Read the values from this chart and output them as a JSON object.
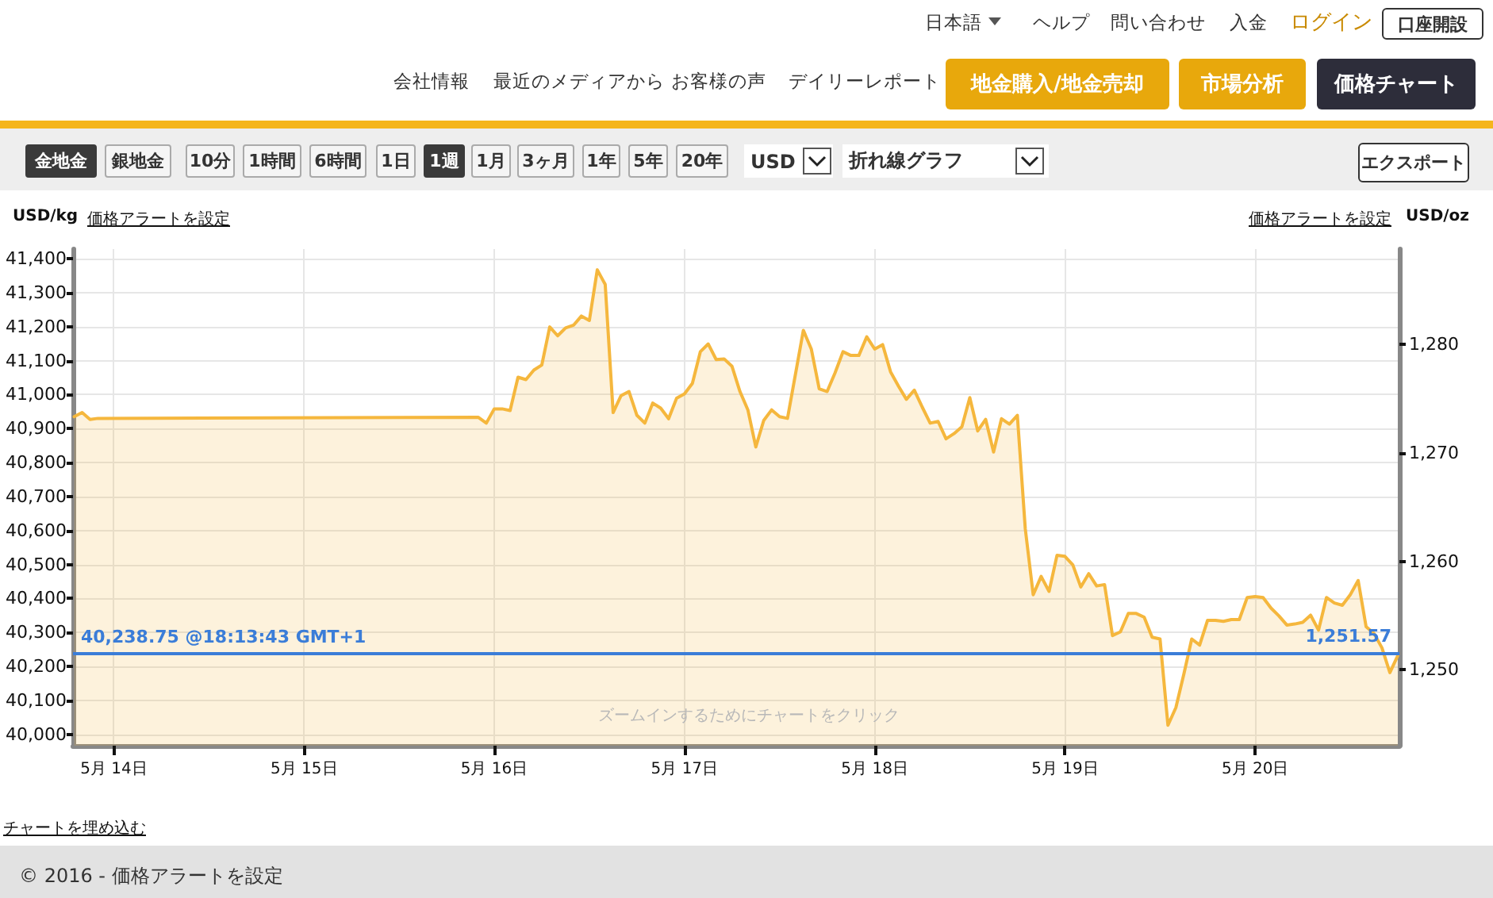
{
  "chart_data": {
    "type": "area",
    "ylabel": "USD/kg",
    "y2label": "USD/oz",
    "x": [
      "2016-05-13T19:00",
      "2016-05-13T20:00",
      "2016-05-13T21:00",
      "2016-05-13T22:00",
      "2016-05-15T22:00",
      "2016-05-15T23:00",
      "2016-05-16T00:00",
      "2016-05-16T01:00",
      "2016-05-16T02:00",
      "2016-05-16T03:00",
      "2016-05-16T04:00",
      "2016-05-16T05:00",
      "2016-05-16T06:00",
      "2016-05-16T07:00",
      "2016-05-16T08:00",
      "2016-05-16T09:00",
      "2016-05-16T10:00",
      "2016-05-16T11:00",
      "2016-05-16T12:00",
      "2016-05-16T13:00",
      "2016-05-16T14:00",
      "2016-05-16T15:00",
      "2016-05-16T16:00",
      "2016-05-16T17:00",
      "2016-05-16T18:00",
      "2016-05-16T19:00",
      "2016-05-16T20:00",
      "2016-05-16T21:00",
      "2016-05-16T22:00",
      "2016-05-16T23:00",
      "2016-05-17T00:00",
      "2016-05-17T01:00",
      "2016-05-17T02:00",
      "2016-05-17T03:00",
      "2016-05-17T04:00",
      "2016-05-17T05:00",
      "2016-05-17T06:00",
      "2016-05-17T07:00",
      "2016-05-17T08:00",
      "2016-05-17T09:00",
      "2016-05-17T10:00",
      "2016-05-17T11:00",
      "2016-05-17T12:00",
      "2016-05-17T13:00",
      "2016-05-17T15:00",
      "2016-05-17T16:00",
      "2016-05-17T17:00",
      "2016-05-17T18:00",
      "2016-05-17T19:00",
      "2016-05-17T20:00",
      "2016-05-17T21:00",
      "2016-05-17T22:00",
      "2016-05-17T23:00",
      "2016-05-18T00:00",
      "2016-05-18T01:00",
      "2016-05-18T02:00",
      "2016-05-18T03:00",
      "2016-05-18T04:00",
      "2016-05-18T05:00",
      "2016-05-18T06:00",
      "2016-05-18T07:00",
      "2016-05-18T08:00",
      "2016-05-18T09:00",
      "2016-05-18T10:00",
      "2016-05-18T11:00",
      "2016-05-18T12:00",
      "2016-05-18T13:00",
      "2016-05-18T14:00",
      "2016-05-18T15:00",
      "2016-05-18T16:00",
      "2016-05-18T17:00",
      "2016-05-18T18:00",
      "2016-05-18T19:00",
      "2016-05-18T20:00",
      "2016-05-18T21:00",
      "2016-05-18T22:00",
      "2016-05-18T23:00",
      "2016-05-19T00:00",
      "2016-05-19T01:00",
      "2016-05-19T02:00",
      "2016-05-19T03:00",
      "2016-05-19T04:00",
      "2016-05-19T05:00",
      "2016-05-19T06:00",
      "2016-05-19T07:00",
      "2016-05-19T08:00",
      "2016-05-19T09:00",
      "2016-05-19T10:00",
      "2016-05-19T11:00",
      "2016-05-19T12:00",
      "2016-05-19T13:00",
      "2016-05-19T14:00",
      "2016-05-19T15:00",
      "2016-05-19T16:00",
      "2016-05-19T17:00",
      "2016-05-19T18:00",
      "2016-05-19T19:00",
      "2016-05-19T20:00",
      "2016-05-19T21:00",
      "2016-05-19T22:00",
      "2016-05-19T23:00",
      "2016-05-20T00:00",
      "2016-05-20T01:00",
      "2016-05-20T02:00",
      "2016-05-20T03:00",
      "2016-05-20T04:00",
      "2016-05-20T05:00",
      "2016-05-20T06:00",
      "2016-05-20T07:00",
      "2016-05-20T08:00",
      "2016-05-20T09:00",
      "2016-05-20T10:00",
      "2016-05-20T11:00",
      "2016-05-20T12:00",
      "2016-05-20T13:00",
      "2016-05-20T14:00",
      "2016-05-20T15:00",
      "2016-05-20T16:00",
      "2016-05-20T17:00",
      "2016-05-20T18:00"
    ],
    "values": [
      40935,
      40947,
      40927,
      40930,
      40933,
      40916,
      40958,
      40958,
      40953,
      41051,
      41044,
      41072,
      41087,
      41199,
      41173,
      41196,
      41204,
      41231,
      41218,
      41367,
      41324,
      40947,
      40997,
      41009,
      40939,
      40916,
      40975,
      40960,
      40929,
      40989,
      41002,
      41033,
      41126,
      41149,
      41103,
      41105,
      41083,
      41009,
      40955,
      40846,
      40924,
      40955,
      40935,
      40930,
      41189,
      41134,
      41017,
      41009,
      41064,
      41126,
      41115,
      41115,
      41170,
      41134,
      41147,
      41067,
      41025,
      40986,
      41013,
      40963,
      40916,
      40921,
      40870,
      40885,
      40905,
      40991,
      40893,
      40927,
      40831,
      40929,
      40913,
      40939,
      40605,
      40411,
      40465,
      40421,
      40527,
      40524,
      40499,
      40434,
      40473,
      40437,
      40441,
      40291,
      40302,
      40356,
      40356,
      40345,
      40286,
      40281,
      40027,
      40079,
      40177,
      40281,
      40263,
      40336,
      40336,
      40333,
      40338,
      40338,
      40403,
      40406,
      40403,
      40372,
      40349,
      40322,
      40325,
      40330,
      40351,
      40307,
      40403,
      40387,
      40380,
      40411,
      40453,
      40317,
      40297,
      40255,
      40182,
      40232
    ],
    "color": "#f5b73d",
    "marker": "none",
    "grid": true,
    "xlim": [
      "2016-05-13T18:51",
      "2016-05-20T18:12"
    ],
    "xticks": [
      {
        "value": "2016-05-14",
        "label": "5月 14日"
      },
      {
        "value": "2016-05-15",
        "label": "5月 15日"
      },
      {
        "value": "2016-05-16",
        "label": "5月 16日"
      },
      {
        "value": "2016-05-17",
        "label": "5月 17日"
      },
      {
        "value": "2016-05-18",
        "label": "5月 18日"
      },
      {
        "value": "2016-05-19",
        "label": "5月 19日"
      },
      {
        "value": "2016-05-20",
        "label": "5月 20日"
      }
    ],
    "ylim": [
      39967,
      41428
    ],
    "yticks": [
      {
        "value": 40000,
        "label": "40,000"
      },
      {
        "value": 40100,
        "label": "40,100"
      },
      {
        "value": 40200,
        "label": "40,200"
      },
      {
        "value": 40300,
        "label": "40,300"
      },
      {
        "value": 40400,
        "label": "40,400"
      },
      {
        "value": 40500,
        "label": "40,500"
      },
      {
        "value": 40600,
        "label": "40,600"
      },
      {
        "value": 40700,
        "label": "40,700"
      },
      {
        "value": 40800,
        "label": "40,800"
      },
      {
        "value": 40900,
        "label": "40,900"
      },
      {
        "value": 41000,
        "label": "41,000"
      },
      {
        "value": 41100,
        "label": "41,100"
      },
      {
        "value": 41200,
        "label": "41,200"
      },
      {
        "value": 41300,
        "label": "41,300"
      },
      {
        "value": 41400,
        "label": "41,400"
      }
    ],
    "y2lim": [
      1243.0,
      1288.8
    ],
    "y2ticks": [
      {
        "value": 1250,
        "label": "1,250"
      },
      {
        "value": 1260,
        "label": "1,260"
      },
      {
        "value": 1270,
        "label": "1,270"
      },
      {
        "value": 1280,
        "label": "1,280"
      }
    ],
    "ref_lines": [
      {
        "axis": "y",
        "value": 40238.75,
        "label": "40,238.75 @18:13:43 GMT+1",
        "color": "#3b7dd8"
      },
      {
        "axis": "y2",
        "value": 1251.57,
        "label": "1,251.57",
        "color": "#3b7dd8"
      }
    ],
    "annotations": [
      "日本語",
      "ヘルプ",
      "問い合わせ",
      "入金",
      "ログイン",
      "口座開設",
      "会社情報",
      "最近のメディアから",
      "お客様の声",
      "デイリーレポート",
      "地金購入/地金売却",
      "市場分析",
      "価格チャート",
      "金地金",
      "銀地金",
      "10分",
      "1時間",
      "6時間",
      "1日",
      "1週",
      "1月",
      "3ヶ月",
      "1年",
      "5年",
      "20年",
      "USD",
      "折れ線グラフ",
      "エクスポート",
      "価格アラートを設定",
      "価格アラートを設定",
      "ズームインするためにチャートをクリック",
      "チャートを埋め込む",
      "© 2016 - 価格アラートを設定"
    ]
  }
}
